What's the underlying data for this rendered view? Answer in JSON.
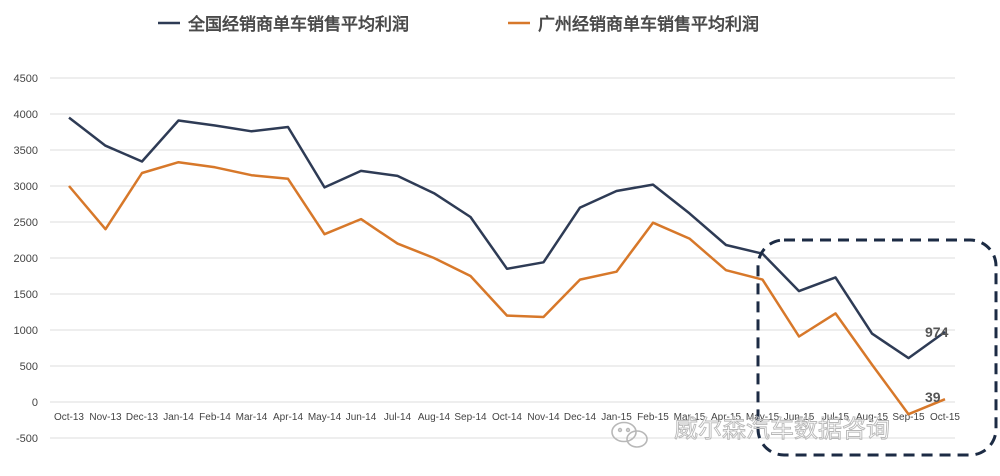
{
  "chart_data": {
    "type": "line",
    "categories": [
      "Oct-13",
      "Nov-13",
      "Dec-13",
      "Jan-14",
      "Feb-14",
      "Mar-14",
      "Apr-14",
      "May-14",
      "Jun-14",
      "Jul-14",
      "Aug-14",
      "Sep-14",
      "Oct-14",
      "Nov-14",
      "Dec-14",
      "Jan-15",
      "Feb-15",
      "Mar-15",
      "Apr-15",
      "May-15",
      "Jun-15",
      "Jul-15",
      "Aug-15",
      "Sep-15",
      "Oct-15"
    ],
    "series": [
      {
        "name": "全国经销商单车销售平均利润",
        "color": "#2e3b55",
        "values": [
          3950,
          3560,
          3340,
          3910,
          3840,
          3760,
          3820,
          2980,
          3210,
          3140,
          2900,
          2570,
          1850,
          1940,
          2700,
          2930,
          3020,
          2620,
          2180,
          2060,
          1540,
          1730,
          950,
          610,
          974
        ]
      },
      {
        "name": "广州经销商单车销售平均利润",
        "color": "#d7782a",
        "values": [
          3000,
          2400,
          3180,
          3330,
          3260,
          3150,
          3100,
          2330,
          2540,
          2200,
          2000,
          1750,
          1200,
          1180,
          1700,
          1810,
          2490,
          2270,
          1830,
          1700,
          910,
          1230,
          520,
          -170,
          39
        ]
      }
    ],
    "data_labels": [
      "974",
      "39"
    ],
    "ylim": [
      -500,
      4500
    ],
    "yticks": [
      -500,
      0,
      500,
      1000,
      1500,
      2000,
      2500,
      3000,
      3500,
      4000,
      4500
    ],
    "ytick_labels": [
      "-500",
      "0",
      "500",
      "1000",
      "1500",
      "2000",
      "2500",
      "3000",
      "3500",
      "4000",
      "4500"
    ],
    "grid": true,
    "legend": "top",
    "title": "",
    "xlabel": "",
    "ylabel": ""
  },
  "watermark": "威尔森汽车数据咨询",
  "colors": {
    "highlight_box": "#1c2b44",
    "grid": "#dddddd"
  },
  "icons": [
    "wechat-icon"
  ]
}
